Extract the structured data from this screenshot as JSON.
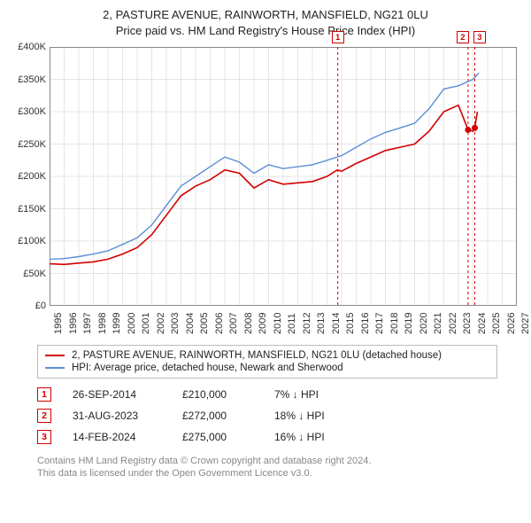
{
  "title_line1": "2, PASTURE AVENUE, RAINWORTH, MANSFIELD, NG21 0LU",
  "title_line2": "Price paid vs. HM Land Registry's House Price Index (HPI)",
  "chart": {
    "type": "line",
    "background_color": "#ffffff",
    "grid_color": "#e4e4e4",
    "axis_color": "#888888",
    "label_fontsize": 11,
    "xlim": [
      1995,
      2027
    ],
    "ylim": [
      0,
      400000
    ],
    "x_ticks": [
      1995,
      1996,
      1997,
      1998,
      1999,
      2000,
      2001,
      2002,
      2003,
      2004,
      2005,
      2006,
      2007,
      2008,
      2009,
      2010,
      2011,
      2012,
      2013,
      2014,
      2015,
      2016,
      2017,
      2018,
      2019,
      2020,
      2021,
      2022,
      2023,
      2024,
      2025,
      2026,
      2027
    ],
    "y_ticks": [
      0,
      50000,
      100000,
      150000,
      200000,
      250000,
      300000,
      350000,
      400000
    ],
    "y_tick_labels": [
      "£0",
      "£50K",
      "£100K",
      "£150K",
      "£200K",
      "£250K",
      "£300K",
      "£350K",
      "£400K"
    ],
    "series": [
      {
        "name": "property",
        "color": "#d40000",
        "line_width": 1.6,
        "points": [
          [
            1995,
            65000
          ],
          [
            1996,
            64000
          ],
          [
            1997,
            66000
          ],
          [
            1998,
            68000
          ],
          [
            1999,
            72000
          ],
          [
            2000,
            80000
          ],
          [
            2001,
            90000
          ],
          [
            2002,
            110000
          ],
          [
            2003,
            140000
          ],
          [
            2004,
            170000
          ],
          [
            2005,
            185000
          ],
          [
            2006,
            195000
          ],
          [
            2007,
            210000
          ],
          [
            2008,
            205000
          ],
          [
            2009,
            182000
          ],
          [
            2010,
            195000
          ],
          [
            2011,
            188000
          ],
          [
            2012,
            190000
          ],
          [
            2013,
            192000
          ],
          [
            2014,
            200000
          ],
          [
            2014.7,
            210000
          ],
          [
            2015,
            208000
          ],
          [
            2016,
            220000
          ],
          [
            2017,
            230000
          ],
          [
            2018,
            240000
          ],
          [
            2019,
            245000
          ],
          [
            2020,
            250000
          ],
          [
            2021,
            270000
          ],
          [
            2022,
            300000
          ],
          [
            2023,
            310000
          ],
          [
            2023.66,
            272000
          ],
          [
            2024,
            270000
          ],
          [
            2024.12,
            275000
          ],
          [
            2024.3,
            300000
          ]
        ]
      },
      {
        "name": "hpi",
        "color": "#5b8fd6",
        "line_width": 1.4,
        "points": [
          [
            1995,
            72000
          ],
          [
            1996,
            73000
          ],
          [
            1997,
            76000
          ],
          [
            1998,
            80000
          ],
          [
            1999,
            85000
          ],
          [
            2000,
            95000
          ],
          [
            2001,
            105000
          ],
          [
            2002,
            125000
          ],
          [
            2003,
            155000
          ],
          [
            2004,
            185000
          ],
          [
            2005,
            200000
          ],
          [
            2006,
            215000
          ],
          [
            2007,
            230000
          ],
          [
            2008,
            222000
          ],
          [
            2009,
            205000
          ],
          [
            2010,
            218000
          ],
          [
            2011,
            212000
          ],
          [
            2012,
            215000
          ],
          [
            2013,
            218000
          ],
          [
            2014,
            225000
          ],
          [
            2015,
            232000
          ],
          [
            2016,
            245000
          ],
          [
            2017,
            258000
          ],
          [
            2018,
            268000
          ],
          [
            2019,
            275000
          ],
          [
            2020,
            282000
          ],
          [
            2021,
            305000
          ],
          [
            2022,
            335000
          ],
          [
            2023,
            340000
          ],
          [
            2024,
            350000
          ],
          [
            2024.4,
            360000
          ]
        ]
      }
    ],
    "vlines": [
      {
        "x": 2014.74,
        "color": "#d40000",
        "dash": "3,3"
      },
      {
        "x": 2023.66,
        "color": "#d40000",
        "dash": "3,3"
      },
      {
        "x": 2024.12,
        "color": "#d40000",
        "dash": "3,3"
      }
    ],
    "sale_markers_on_chart": [
      {
        "n": "1",
        "x": 2014.74,
        "color": "#d40000"
      },
      {
        "n": "2",
        "x": 2023.3,
        "color": "#d40000"
      },
      {
        "n": "3",
        "x": 2024.45,
        "color": "#d40000"
      }
    ],
    "sale_points": [
      {
        "x": 2023.66,
        "y": 272000,
        "color": "#d40000"
      },
      {
        "x": 2024.12,
        "y": 275000,
        "color": "#d40000"
      }
    ]
  },
  "legend": {
    "border_color": "#bbbbbb",
    "items": [
      {
        "color": "#d40000",
        "label": "2, PASTURE AVENUE, RAINWORTH, MANSFIELD, NG21 0LU (detached house)"
      },
      {
        "color": "#5b8fd6",
        "label": "HPI: Average price, detached house, Newark and Sherwood"
      }
    ]
  },
  "sales": [
    {
      "n": "1",
      "date": "26-SEP-2014",
      "price": "£210,000",
      "delta": "7% ↓ HPI",
      "color": "#d40000"
    },
    {
      "n": "2",
      "date": "31-AUG-2023",
      "price": "£272,000",
      "delta": "18% ↓ HPI",
      "color": "#d40000"
    },
    {
      "n": "3",
      "date": "14-FEB-2024",
      "price": "£275,000",
      "delta": "16% ↓ HPI",
      "color": "#d40000"
    }
  ],
  "attribution_line1": "Contains HM Land Registry data © Crown copyright and database right 2024.",
  "attribution_line2": "This data is licensed under the Open Government Licence v3.0."
}
